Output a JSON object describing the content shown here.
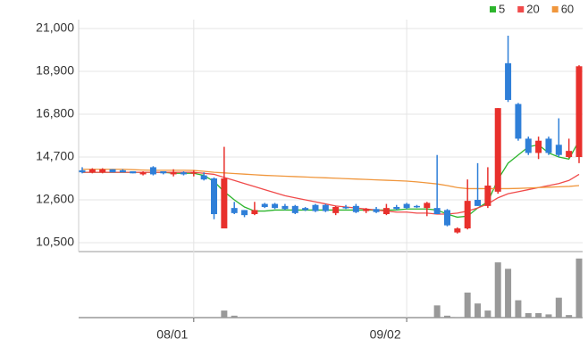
{
  "chart_data": {
    "type": "candlestick",
    "categories": [
      null,
      null,
      null,
      null,
      null,
      null,
      null,
      null,
      null,
      null,
      null,
      "08/01",
      null,
      null,
      null,
      null,
      null,
      null,
      null,
      null,
      null,
      null,
      null,
      null,
      null,
      null,
      null,
      null,
      null,
      null,
      null,
      null,
      "09/02",
      null,
      null,
      null,
      null,
      null,
      null,
      null,
      null,
      null,
      null,
      null,
      null,
      null,
      null,
      null,
      null,
      null
    ],
    "open": [
      14050,
      13950,
      13950,
      14100,
      14050,
      14000,
      13850,
      14200,
      14000,
      13850,
      13950,
      13900,
      13800,
      13650,
      11200,
      12200,
      12100,
      11900,
      12400,
      12400,
      12300,
      12300,
      12200,
      12350,
      12350,
      11950,
      12250,
      12300,
      12050,
      12150,
      11900,
      12250,
      12400,
      12300,
      12200,
      12200,
      12100,
      11000,
      11200,
      12600,
      12300,
      13000,
      19300,
      17300,
      15600,
      14900,
      15600,
      15300,
      14700,
      14700
    ],
    "high": [
      14200,
      14150,
      14150,
      14100,
      14100,
      14000,
      14000,
      14250,
      14000,
      14100,
      14000,
      14050,
      13950,
      13700,
      15200,
      12500,
      12100,
      12500,
      12450,
      12450,
      12400,
      12350,
      12250,
      12400,
      12400,
      12300,
      12350,
      12400,
      12200,
      12250,
      12400,
      12350,
      12450,
      12350,
      12500,
      14800,
      12150,
      11250,
      13600,
      14400,
      14200,
      17100,
      20650,
      17350,
      15700,
      15700,
      15700,
      16600,
      15600,
      19200
    ],
    "low": [
      13900,
      13900,
      13900,
      13950,
      13950,
      13900,
      13800,
      13800,
      13850,
      13750,
      13800,
      13750,
      13550,
      11650,
      11200,
      11900,
      11750,
      11850,
      12200,
      12150,
      12100,
      11900,
      12050,
      12000,
      12000,
      11850,
      12150,
      11950,
      11950,
      11950,
      11850,
      12100,
      12150,
      12200,
      11800,
      11900,
      11300,
      10950,
      11150,
      12300,
      12200,
      12900,
      17400,
      15500,
      14800,
      14600,
      14800,
      14700,
      14650,
      14400
    ],
    "close": [
      13950,
      14100,
      14100,
      13950,
      13950,
      13900,
      13950,
      13850,
      13900,
      13950,
      13850,
      13950,
      13600,
      11900,
      13650,
      11950,
      11850,
      12100,
      12250,
      12200,
      12150,
      11950,
      12100,
      12050,
      12050,
      12250,
      12200,
      12000,
      12150,
      12000,
      12200,
      12150,
      12200,
      12250,
      12450,
      11900,
      11350,
      11200,
      12550,
      12300,
      13300,
      17100,
      17500,
      15600,
      14900,
      15500,
      14900,
      14800,
      15000,
      19150
    ],
    "up_color": "#e8302c",
    "down_color": "#2f7fd8",
    "series": [
      {
        "name": "5",
        "color": "#2db52d",
        "values": [
          13950,
          13950,
          13950,
          13950,
          13950,
          13950,
          13950,
          13950,
          13950,
          13900,
          13900,
          13900,
          13800,
          13500,
          13000,
          12600,
          12250,
          12050,
          12050,
          12100,
          12100,
          12100,
          12100,
          12100,
          12100,
          12100,
          12100,
          12100,
          12100,
          12100,
          12100,
          12100,
          12150,
          12150,
          12150,
          12100,
          11900,
          11750,
          11800,
          12200,
          12500,
          13600,
          14400,
          14800,
          15200,
          15300,
          14900,
          14700,
          14600,
          15500
        ]
      },
      {
        "name": "20",
        "color": "#f04a4a",
        "values": [
          13950,
          13950,
          13950,
          13950,
          13950,
          13950,
          13950,
          13950,
          13950,
          13950,
          13950,
          13950,
          13900,
          13850,
          13700,
          13550,
          13400,
          13250,
          13100,
          12950,
          12800,
          12700,
          12600,
          12500,
          12400,
          12300,
          12250,
          12200,
          12150,
          12100,
          12050,
          12000,
          12000,
          11950,
          11950,
          11900,
          11900,
          11950,
          12050,
          12200,
          12400,
          12700,
          12900,
          13000,
          13100,
          13200,
          13300,
          13400,
          13550,
          13850
        ]
      },
      {
        "name": "60",
        "color": "#f0963c",
        "values": [
          14100,
          14100,
          14100,
          14100,
          14100,
          14080,
          14060,
          14050,
          14050,
          14050,
          14050,
          14040,
          14000,
          13950,
          13920,
          13890,
          13860,
          13830,
          13800,
          13780,
          13760,
          13740,
          13720,
          13700,
          13680,
          13660,
          13640,
          13620,
          13600,
          13580,
          13560,
          13540,
          13520,
          13480,
          13430,
          13380,
          13300,
          13200,
          13150,
          13150,
          13150,
          13150,
          13150,
          13160,
          13180,
          13200,
          13220,
          13240,
          13260,
          13300
        ]
      }
    ],
    "volume": [
      0,
      0,
      0,
      0,
      0,
      0,
      0,
      0,
      0,
      0,
      0,
      0,
      0,
      0,
      11,
      3,
      0,
      0,
      0,
      0,
      0,
      0,
      0,
      0,
      0,
      0,
      0,
      0,
      0,
      0,
      0,
      0,
      0,
      0,
      0,
      19,
      3,
      1,
      39,
      22,
      11,
      86,
      76,
      27,
      7,
      7,
      5,
      31,
      4,
      92
    ],
    "volume_color": "#999999",
    "volume_ylim": [
      0,
      100
    ],
    "ylim": [
      10500,
      21000
    ],
    "yticks": [
      {
        "value": 10500,
        "label": "10,500"
      },
      {
        "value": 12600,
        "label": "12,600"
      },
      {
        "value": 14700,
        "label": "14,700"
      },
      {
        "value": 16800,
        "label": "16,800"
      },
      {
        "value": 18900,
        "label": "18,900"
      },
      {
        "value": 21000,
        "label": "21,000"
      }
    ],
    "grid": true
  }
}
